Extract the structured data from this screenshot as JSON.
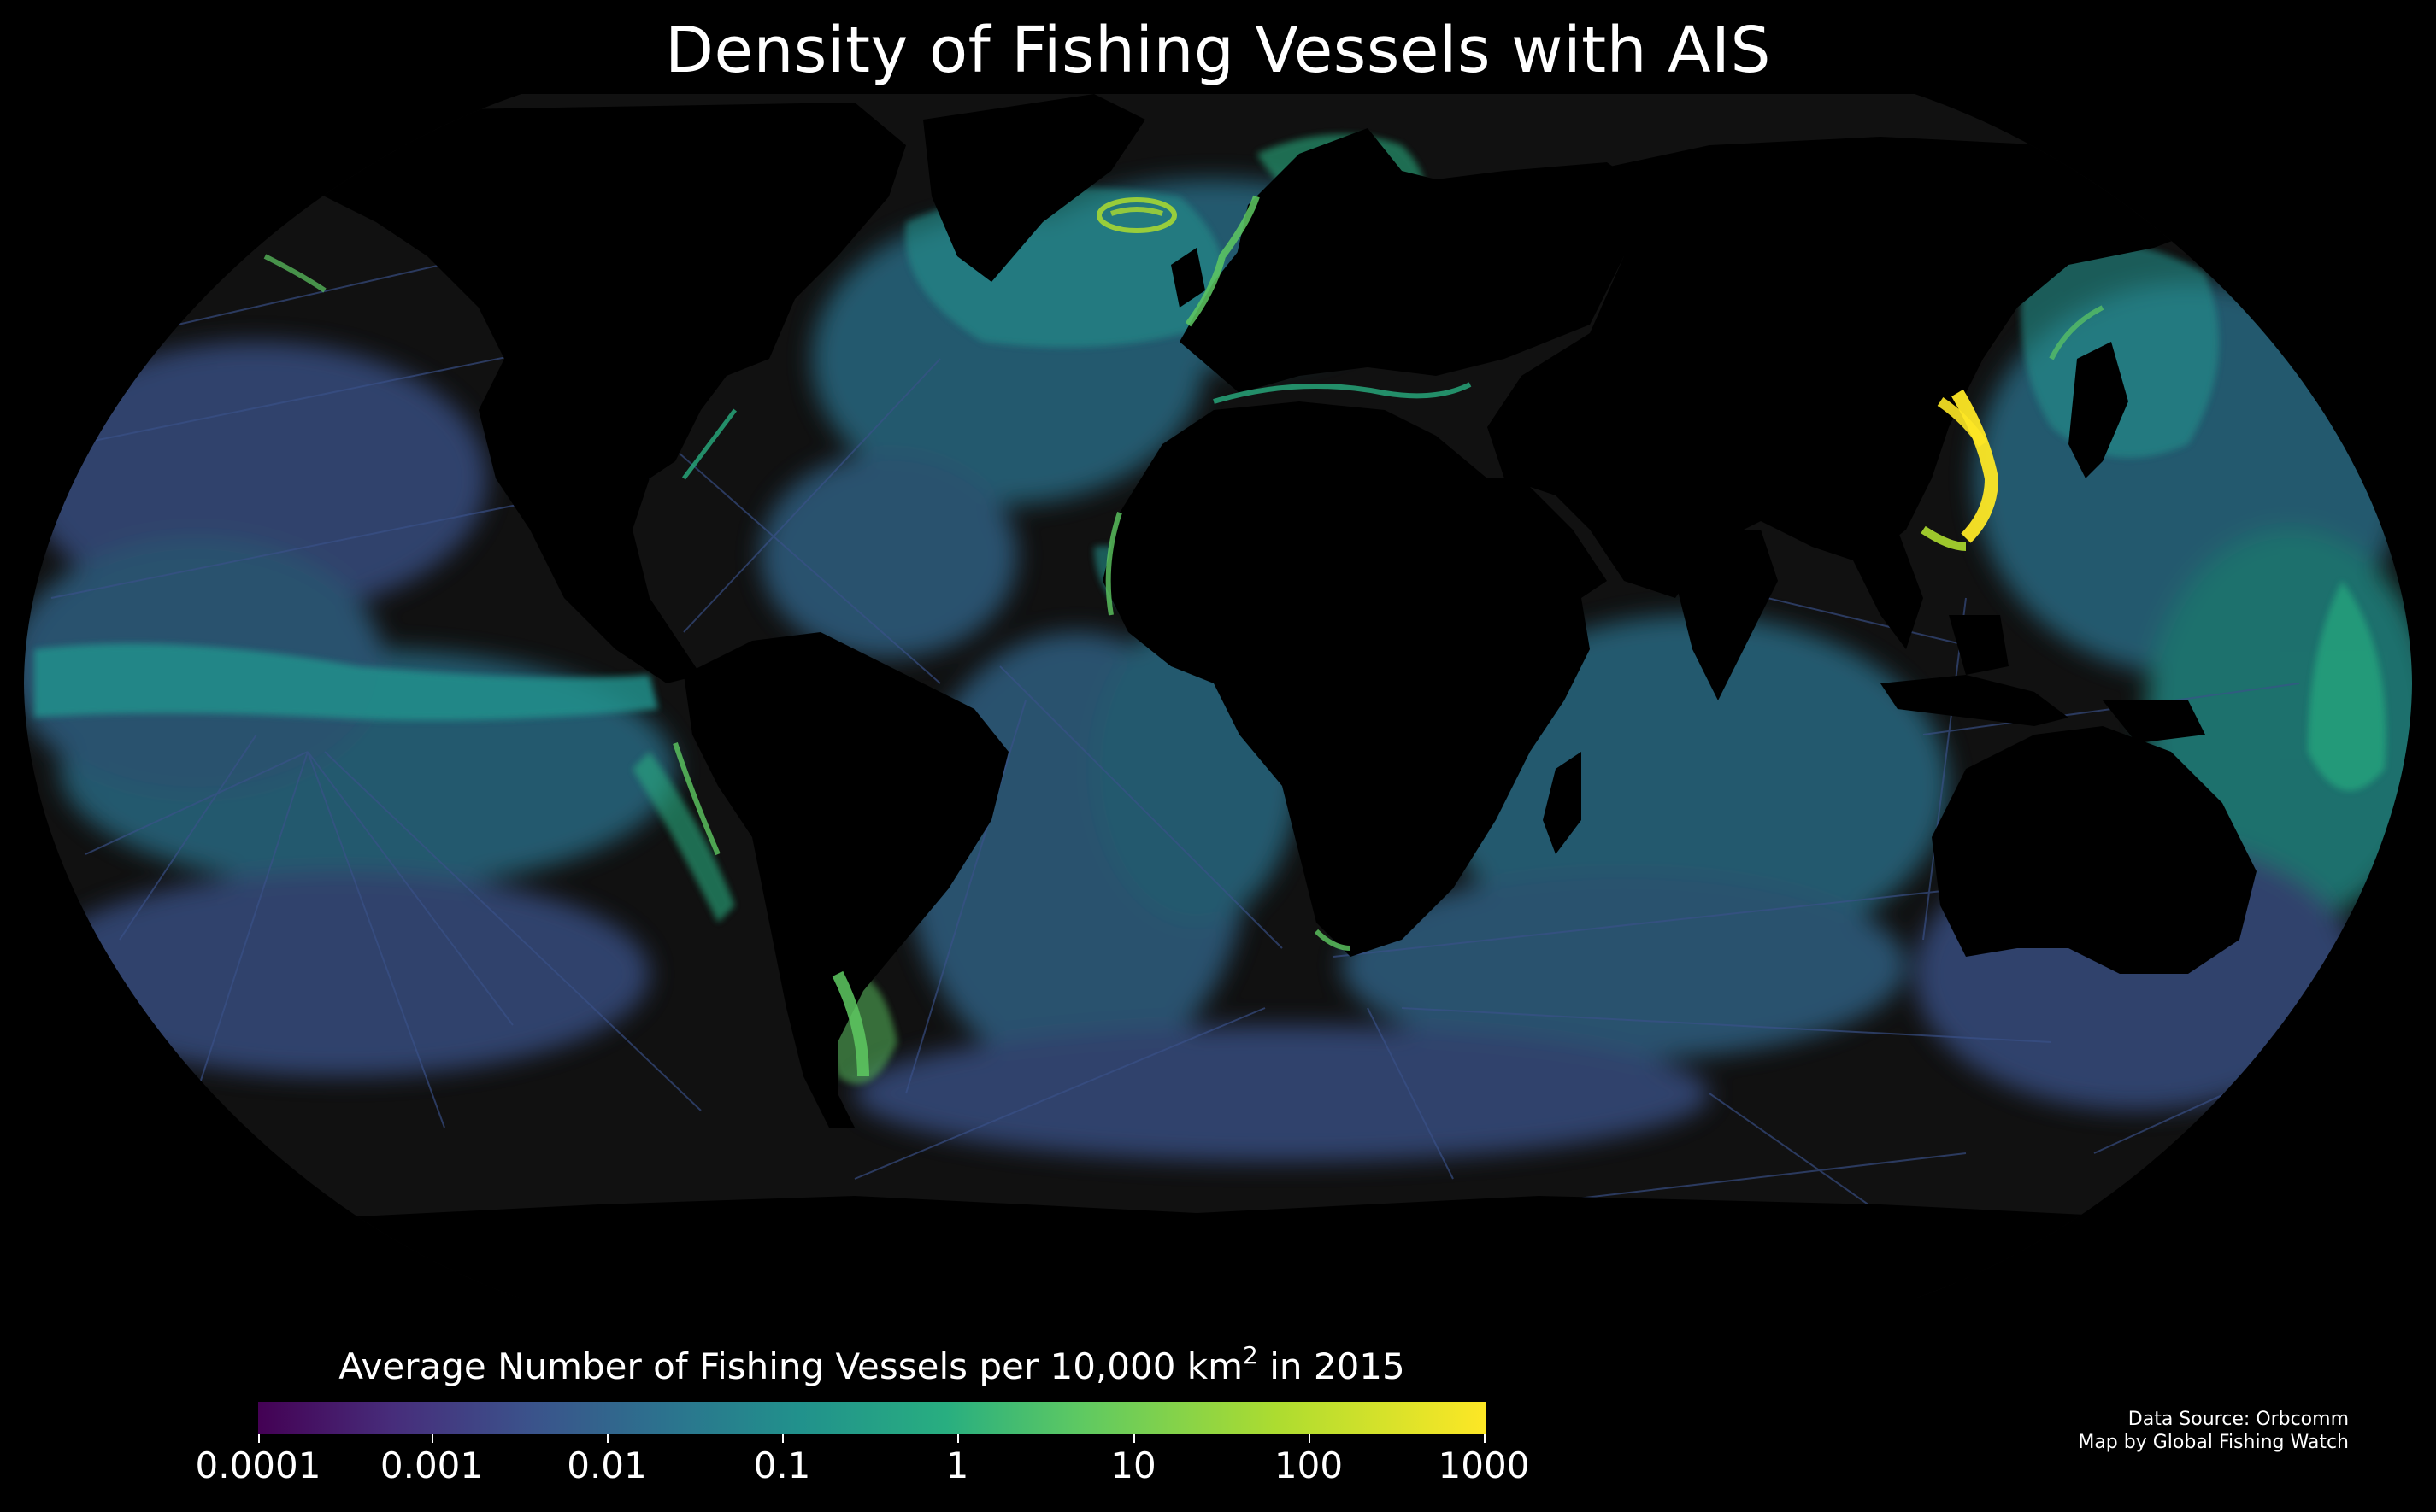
{
  "title": "Density of Fishing Vessels with AIS",
  "colorbar": {
    "label_prefix": "Average Number of Fishing Vessels per 10,000 km",
    "label_exponent": "2",
    "label_suffix": " in 2015",
    "ticks": [
      "0.0001",
      "0.001",
      "0.01",
      "0.1",
      "1",
      "10",
      "100",
      "1000"
    ],
    "colormap": "viridis",
    "scale": "log",
    "colors": [
      "#440154",
      "#3b528b",
      "#21918c",
      "#5ec962",
      "#fde725"
    ]
  },
  "credits": {
    "source": "Data Source: Orbcomm",
    "author": "Map by Global Fishing Watch"
  },
  "map": {
    "projection": "Robinson",
    "ocean_color": "#111111",
    "land_color": "#000000"
  }
}
